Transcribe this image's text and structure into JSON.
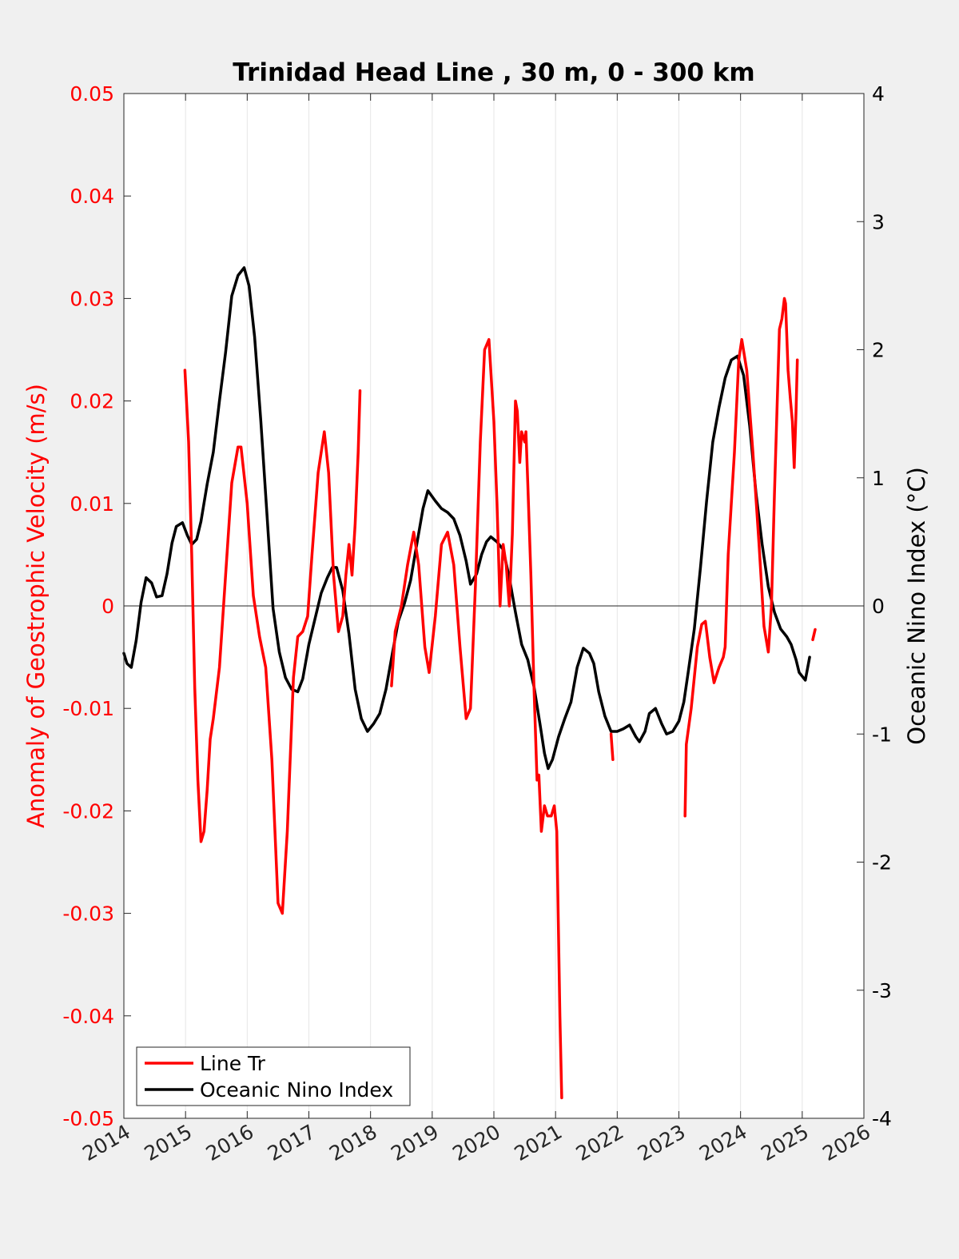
{
  "chart_data": {
    "type": "line",
    "title": "Trinidad Head Line , 30 m, 0 - 300 km",
    "xlabel": "",
    "xlim": [
      2014,
      2026
    ],
    "xticks": [
      "2014",
      "2015",
      "2016",
      "2017",
      "2018",
      "2019",
      "2020",
      "2021",
      "2022",
      "2023",
      "2024",
      "2025",
      "2026"
    ],
    "y_left": {
      "label": "Anomaly of Geostrophic Velocity (m/s)",
      "lim": [
        -0.05,
        0.05
      ],
      "ticks": [
        "0.05",
        "0.04",
        "0.03",
        "0.02",
        "0.01",
        "0",
        "-0.01",
        "-0.02",
        "-0.03",
        "-0.04",
        "-0.05"
      ],
      "color": "#ff0000"
    },
    "y_right": {
      "label": "Oceanic Nino Index (°C)",
      "lim": [
        -4,
        4
      ],
      "ticks": [
        "4",
        "3",
        "2",
        "1",
        "0",
        "-1",
        "-2",
        "-3",
        "-4"
      ],
      "color": "#000000"
    },
    "grid": "vertical",
    "zero_line": true,
    "legend": {
      "placement": "bottom-left",
      "entries": [
        "Line Tr",
        "Oceanic Nino Index"
      ]
    },
    "series": [
      {
        "name": "Line Tr",
        "axis": "left",
        "color": "#ff0000",
        "segments": [
          [
            [
              2014.99,
              0.023
            ],
            [
              2015.05,
              0.016
            ],
            [
              2015.1,
              0.005
            ],
            [
              2015.15,
              -0.008
            ],
            [
              2015.2,
              -0.017
            ],
            [
              2015.25,
              -0.023
            ],
            [
              2015.3,
              -0.022
            ],
            [
              2015.35,
              -0.018
            ],
            [
              2015.4,
              -0.013
            ],
            [
              2015.45,
              -0.011
            ],
            [
              2015.55,
              -0.006
            ],
            [
              2015.65,
              0.003
            ],
            [
              2015.75,
              0.012
            ],
            [
              2015.85,
              0.0155
            ],
            [
              2015.9,
              0.0155
            ],
            [
              2016.0,
              0.01
            ],
            [
              2016.1,
              0.001
            ],
            [
              2016.2,
              -0.003
            ],
            [
              2016.3,
              -0.006
            ],
            [
              2016.4,
              -0.015
            ],
            [
              2016.5,
              -0.029
            ],
            [
              2016.57,
              -0.03
            ],
            [
              2016.65,
              -0.022
            ],
            [
              2016.75,
              -0.007
            ],
            [
              2016.82,
              -0.003
            ],
            [
              2016.9,
              -0.0025
            ],
            [
              2016.98,
              -0.001
            ],
            [
              2017.05,
              0.005
            ],
            [
              2017.15,
              0.013
            ],
            [
              2017.25,
              0.017
            ],
            [
              2017.32,
              0.013
            ],
            [
              2017.4,
              0.003
            ],
            [
              2017.48,
              -0.0025
            ],
            [
              2017.55,
              -0.001
            ],
            [
              2017.6,
              0.003
            ],
            [
              2017.65,
              0.006
            ],
            [
              2017.7,
              0.003
            ],
            [
              2017.75,
              0.008
            ],
            [
              2017.8,
              0.015
            ],
            [
              2017.83,
              0.021
            ]
          ],
          [
            [
              2018.34,
              -0.0078
            ],
            [
              2018.4,
              -0.0025
            ],
            [
              2018.5,
              0.0
            ],
            [
              2018.6,
              0.004
            ],
            [
              2018.7,
              0.0072
            ],
            [
              2018.78,
              0.004
            ],
            [
              2018.88,
              -0.004
            ],
            [
              2018.95,
              -0.0065
            ],
            [
              2019.05,
              -0.001
            ],
            [
              2019.15,
              0.006
            ],
            [
              2019.25,
              0.0072
            ],
            [
              2019.35,
              0.004
            ],
            [
              2019.45,
              -0.004
            ],
            [
              2019.55,
              -0.011
            ],
            [
              2019.62,
              -0.01
            ],
            [
              2019.7,
              0.002
            ],
            [
              2019.78,
              0.016
            ],
            [
              2019.85,
              0.025
            ],
            [
              2019.92,
              0.026
            ],
            [
              2020.0,
              0.018
            ],
            [
              2020.05,
              0.01
            ],
            [
              2020.1,
              0.0
            ],
            [
              2020.15,
              0.006
            ],
            [
              2020.2,
              0.004
            ],
            [
              2020.25,
              0.0
            ],
            [
              2020.3,
              0.007
            ],
            [
              2020.35,
              0.02
            ],
            [
              2020.38,
              0.019
            ],
            [
              2020.42,
              0.014
            ],
            [
              2020.45,
              0.017
            ],
            [
              2020.5,
              0.016
            ],
            [
              2020.52,
              0.017
            ],
            [
              2020.55,
              0.012
            ],
            [
              2020.6,
              0.003
            ],
            [
              2020.65,
              -0.008
            ],
            [
              2020.7,
              -0.017
            ],
            [
              2020.73,
              -0.0165
            ],
            [
              2020.77,
              -0.022
            ],
            [
              2020.82,
              -0.0195
            ],
            [
              2020.87,
              -0.0205
            ],
            [
              2020.93,
              -0.0205
            ],
            [
              2020.98,
              -0.0195
            ],
            [
              2021.02,
              -0.022
            ],
            [
              2021.07,
              -0.04
            ],
            [
              2021.1,
              -0.048
            ]
          ],
          [
            [
              2021.9,
              -0.0125
            ],
            [
              2021.93,
              -0.015
            ]
          ],
          [
            [
              2023.1,
              -0.0205
            ],
            [
              2023.12,
              -0.0135
            ],
            [
              2023.2,
              -0.01
            ],
            [
              2023.3,
              -0.004
            ],
            [
              2023.37,
              -0.0018
            ],
            [
              2023.43,
              -0.0015
            ],
            [
              2023.5,
              -0.005
            ],
            [
              2023.57,
              -0.0075
            ],
            [
              2023.65,
              -0.006
            ],
            [
              2023.72,
              -0.005
            ],
            [
              2023.75,
              -0.004
            ],
            [
              2023.8,
              0.005
            ],
            [
              2023.9,
              0.015
            ],
            [
              2023.97,
              0.024
            ],
            [
              2024.02,
              0.026
            ],
            [
              2024.1,
              0.023
            ],
            [
              2024.2,
              0.015
            ],
            [
              2024.3,
              0.006
            ],
            [
              2024.38,
              -0.002
            ],
            [
              2024.45,
              -0.0045
            ],
            [
              2024.5,
              0.0
            ],
            [
              2024.55,
              0.011
            ],
            [
              2024.63,
              0.027
            ],
            [
              2024.67,
              0.028
            ],
            [
              2024.71,
              0.03
            ],
            [
              2024.73,
              0.0295
            ],
            [
              2024.77,
              0.023
            ],
            [
              2024.81,
              0.02
            ],
            [
              2024.84,
              0.018
            ],
            [
              2024.87,
              0.0135
            ],
            [
              2024.9,
              0.019
            ],
            [
              2024.92,
              0.024
            ]
          ],
          [
            [
              2025.17,
              -0.0033
            ],
            [
              2025.21,
              -0.0023
            ]
          ]
        ]
      },
      {
        "name": "Oceanic Nino Index",
        "axis": "right",
        "color": "#000000",
        "segments": [
          [
            [
              2014.0,
              -0.37
            ],
            [
              2014.05,
              -0.45
            ],
            [
              2014.12,
              -0.48
            ],
            [
              2014.2,
              -0.27
            ],
            [
              2014.28,
              0.03
            ],
            [
              2014.36,
              0.22
            ],
            [
              2014.45,
              0.18
            ],
            [
              2014.53,
              0.07
            ],
            [
              2014.62,
              0.08
            ],
            [
              2014.7,
              0.25
            ],
            [
              2014.78,
              0.49
            ],
            [
              2014.85,
              0.62
            ],
            [
              2014.95,
              0.65
            ],
            [
              2015.03,
              0.55
            ],
            [
              2015.1,
              0.48
            ],
            [
              2015.18,
              0.52
            ],
            [
              2015.25,
              0.66
            ],
            [
              2015.35,
              0.95
            ],
            [
              2015.45,
              1.2
            ],
            [
              2015.55,
              1.6
            ],
            [
              2015.65,
              1.98
            ],
            [
              2015.75,
              2.42
            ],
            [
              2015.85,
              2.58
            ],
            [
              2015.95,
              2.64
            ],
            [
              2016.03,
              2.5
            ],
            [
              2016.12,
              2.1
            ],
            [
              2016.22,
              1.45
            ],
            [
              2016.32,
              0.72
            ],
            [
              2016.42,
              -0.02
            ],
            [
              2016.52,
              -0.36
            ],
            [
              2016.62,
              -0.56
            ],
            [
              2016.72,
              -0.65
            ],
            [
              2016.82,
              -0.67
            ],
            [
              2016.9,
              -0.57
            ],
            [
              2017.0,
              -0.3
            ],
            [
              2017.1,
              -0.1
            ],
            [
              2017.2,
              0.1
            ],
            [
              2017.3,
              0.22
            ],
            [
              2017.38,
              0.3
            ],
            [
              2017.45,
              0.3
            ],
            [
              2017.55,
              0.12
            ],
            [
              2017.65,
              -0.22
            ],
            [
              2017.75,
              -0.65
            ],
            [
              2017.85,
              -0.88
            ],
            [
              2017.95,
              -0.98
            ],
            [
              2018.05,
              -0.92
            ],
            [
              2018.15,
              -0.84
            ],
            [
              2018.25,
              -0.65
            ],
            [
              2018.35,
              -0.38
            ],
            [
              2018.45,
              -0.12
            ],
            [
              2018.55,
              0.02
            ],
            [
              2018.65,
              0.2
            ],
            [
              2018.75,
              0.48
            ],
            [
              2018.85,
              0.76
            ],
            [
              2018.93,
              0.9
            ],
            [
              2019.05,
              0.82
            ],
            [
              2019.15,
              0.76
            ],
            [
              2019.25,
              0.73
            ],
            [
              2019.35,
              0.68
            ],
            [
              2019.45,
              0.55
            ],
            [
              2019.55,
              0.35
            ],
            [
              2019.62,
              0.17
            ],
            [
              2019.72,
              0.25
            ],
            [
              2019.8,
              0.4
            ],
            [
              2019.88,
              0.5
            ],
            [
              2019.95,
              0.54
            ],
            [
              2020.05,
              0.5
            ],
            [
              2020.15,
              0.44
            ],
            [
              2020.25,
              0.22
            ],
            [
              2020.35,
              -0.05
            ],
            [
              2020.45,
              -0.3
            ],
            [
              2020.55,
              -0.42
            ],
            [
              2020.65,
              -0.63
            ],
            [
              2020.75,
              -0.93
            ],
            [
              2020.82,
              -1.15
            ],
            [
              2020.88,
              -1.27
            ],
            [
              2020.95,
              -1.2
            ],
            [
              2021.05,
              -1.02
            ],
            [
              2021.15,
              -0.88
            ],
            [
              2021.25,
              -0.75
            ],
            [
              2021.35,
              -0.48
            ],
            [
              2021.45,
              -0.33
            ],
            [
              2021.55,
              -0.37
            ],
            [
              2021.62,
              -0.45
            ],
            [
              2021.7,
              -0.67
            ],
            [
              2021.8,
              -0.86
            ],
            [
              2021.9,
              -0.98
            ],
            [
              2022.0,
              -0.98
            ],
            [
              2022.1,
              -0.96
            ],
            [
              2022.2,
              -0.93
            ],
            [
              2022.3,
              -1.02
            ],
            [
              2022.36,
              -1.06
            ],
            [
              2022.45,
              -0.98
            ],
            [
              2022.52,
              -0.84
            ],
            [
              2022.62,
              -0.8
            ],
            [
              2022.72,
              -0.92
            ],
            [
              2022.8,
              -1.0
            ],
            [
              2022.9,
              -0.98
            ],
            [
              2023.0,
              -0.9
            ],
            [
              2023.08,
              -0.75
            ],
            [
              2023.15,
              -0.52
            ],
            [
              2023.25,
              -0.18
            ],
            [
              2023.35,
              0.3
            ],
            [
              2023.45,
              0.82
            ],
            [
              2023.55,
              1.28
            ],
            [
              2023.65,
              1.55
            ],
            [
              2023.75,
              1.78
            ],
            [
              2023.85,
              1.92
            ],
            [
              2023.95,
              1.95
            ],
            [
              2024.05,
              1.8
            ],
            [
              2024.15,
              1.4
            ],
            [
              2024.25,
              0.88
            ],
            [
              2024.35,
              0.48
            ],
            [
              2024.45,
              0.15
            ],
            [
              2024.55,
              -0.05
            ],
            [
              2024.65,
              -0.18
            ],
            [
              2024.75,
              -0.24
            ],
            [
              2024.82,
              -0.3
            ],
            [
              2024.9,
              -0.42
            ],
            [
              2024.95,
              -0.52
            ],
            [
              2025.05,
              -0.58
            ],
            [
              2025.12,
              -0.4
            ]
          ]
        ]
      }
    ]
  }
}
